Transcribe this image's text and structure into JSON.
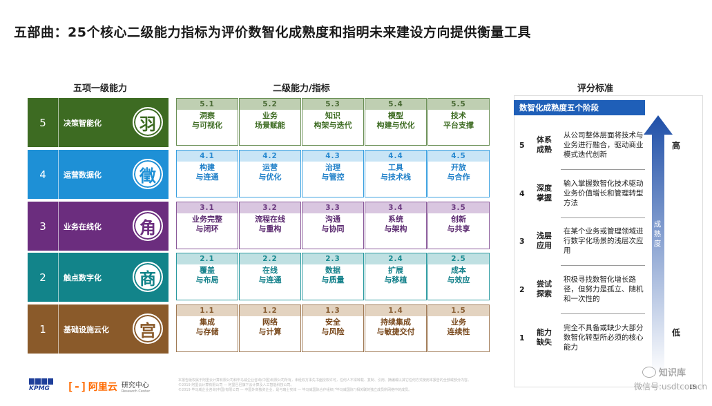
{
  "title": "五部曲：25个核心二级能力指标为评价数智化成熟度和指明未来建设方向提供衡量工具",
  "headers": {
    "left": "五项一级能力",
    "middle": "二级能力/指标",
    "right": "评分标准"
  },
  "tiers": [
    {
      "num": "5",
      "label": "决策智能化",
      "seal": "羽",
      "color": "#3d6b22",
      "cell_border": "#6a8f55",
      "code_bg": "#bfcfb2",
      "code_color": "#4a6b35",
      "text_color": "#3d6b22",
      "cells": [
        {
          "code": "5.1",
          "text": "洞察\n与可视化"
        },
        {
          "code": "5.2",
          "text": "业务\n场景赋能"
        },
        {
          "code": "5.3",
          "text": "知识\n构架与迭代"
        },
        {
          "code": "5.4",
          "text": "模型\n构建与优化"
        },
        {
          "code": "5.5",
          "text": "技术\n平台支撑"
        }
      ]
    },
    {
      "num": "4",
      "label": "运营数据化",
      "seal": "徵",
      "color": "#1e90d6",
      "cell_border": "#3aa0e0",
      "code_bg": "#c9e5f6",
      "code_color": "#2a8ad0",
      "text_color": "#1e7fc8",
      "cells": [
        {
          "code": "4.1",
          "text": "构建\n与连通"
        },
        {
          "code": "4.2",
          "text": "运营\n与优化"
        },
        {
          "code": "4.3",
          "text": "治理\n与管控"
        },
        {
          "code": "4.4",
          "text": "工具\n与技术栈"
        },
        {
          "code": "4.5",
          "text": "开放\n与合作"
        }
      ]
    },
    {
      "num": "3",
      "label": "业务在线化",
      "seal": "角",
      "color": "#6b2d7e",
      "cell_border": "#8a5a9a",
      "code_bg": "#d9c6e0",
      "code_color": "#6b3a80",
      "text_color": "#5b2a70",
      "cells": [
        {
          "code": "3.1",
          "text": "业务完整\n与闭环"
        },
        {
          "code": "3.2",
          "text": "流程在线\n与重构"
        },
        {
          "code": "3.3",
          "text": "沟通\n与协同"
        },
        {
          "code": "3.4",
          "text": "系统\n与架构"
        },
        {
          "code": "3.5",
          "text": "创新\n与共享"
        }
      ]
    },
    {
      "num": "2",
      "label": "触点数字化",
      "seal": "商",
      "color": "#12848a",
      "cell_border": "#2a9aa0",
      "code_bg": "#bfe0e2",
      "code_color": "#1a8a90",
      "text_color": "#12808a",
      "cells": [
        {
          "code": "2.1",
          "text": "覆盖\n与布局"
        },
        {
          "code": "2.2",
          "text": "在线\n与连通"
        },
        {
          "code": "2.3",
          "text": "数据\n与质量"
        },
        {
          "code": "2.4",
          "text": "扩展\n与移植"
        },
        {
          "code": "2.5",
          "text": "成本\n与效应"
        }
      ]
    },
    {
      "num": "1",
      "label": "基础设施云化",
      "seal": "宫",
      "color": "#8a5a2a",
      "cell_border": "#a07a55",
      "code_bg": "#e3d3c0",
      "code_color": "#8a6035",
      "text_color": "#7a4a1e",
      "cells": [
        {
          "code": "1.1",
          "text": "集成\n与存储"
        },
        {
          "code": "1.2",
          "text": "网络\n与计算"
        },
        {
          "code": "1.3",
          "text": "安全\n与风险"
        },
        {
          "code": "1.4",
          "text": "持续集成\n与敏捷交付"
        },
        {
          "code": "1.5",
          "text": "业务\n连续性"
        }
      ]
    }
  ],
  "maturity": {
    "banner": "数智化成熟度五个阶段",
    "arrow_label": "成熟度",
    "high": "高",
    "low": "低",
    "stages": [
      {
        "num": "5",
        "name": "体系\n成熟",
        "desc": "从公司整体层面将技术与业务进行融合，驱动商业模式迭代创新"
      },
      {
        "num": "4",
        "name": "深度\n掌握",
        "desc": "输入掌握数智化技术驱动业务价值增长和管理转型方法"
      },
      {
        "num": "3",
        "name": "浅层\n应用",
        "desc": "在某个业务或管理领域进行数字化场景的浅层次应用"
      },
      {
        "num": "2",
        "name": "尝试\n探索",
        "desc": "积极寻找数智化增长路径，但努力是孤立、随机和一次性的"
      },
      {
        "num": "1",
        "name": "能力\n缺失",
        "desc": "完全不具备或缺少大部分数智化转型所必须的核心能力"
      }
    ]
  },
  "footer": {
    "kpmg": "KPMG",
    "aliyun": "阿里云",
    "research": "研究中心",
    "research_en": "Research Center",
    "note1": "本报告版权属于阿里云计算有限公司和毕马威企业咨询(中国)有限公司所有，未经双方事先书面授权许可，任何人不得转载、复制、引用、摘编或以其它任何方式使用本报告的全部或部分内容。",
    "note2": "©2019 阿里云计算有限公司 — 阿里巴巴旗下云计算及人工智能科技公司。",
    "note3": "©2019 毕马威企业咨询(中国)有限公司 — 中国外商独资企业，是与瑞士实体 — 毕马威国际合作组织(\"毕马威国际\")相关联的独立成员所网络中的成员。",
    "page": "15",
    "watermark_main": "知识库",
    "watermark_sub": "微信号:usdtcomcn"
  }
}
